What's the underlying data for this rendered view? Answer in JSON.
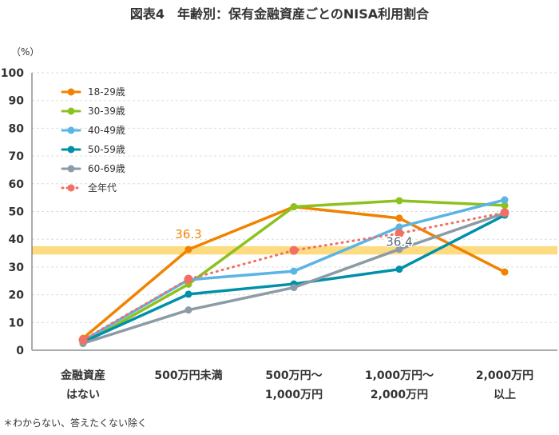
{
  "title": "図表4　年齢別：保有金融資産ごとのNISA利用割合",
  "footnote": "＊わからない、答えたくない除く",
  "chart_data": {
    "type": "line",
    "ylabel": "（%）",
    "ylim": [
      0,
      100
    ],
    "yticks": [
      0,
      10,
      20,
      30,
      40,
      50,
      60,
      70,
      80,
      90,
      100
    ],
    "grid": true,
    "legend": "top-left",
    "categories": [
      [
        "金融資産",
        "はない"
      ],
      [
        "500万円未満"
      ],
      [
        "500万円～",
        "1,000万円"
      ],
      [
        "1,000万円～",
        "2,000万円"
      ],
      [
        "2,000万円",
        "以上"
      ]
    ],
    "highlight_band": [
      34.5,
      37.5
    ],
    "highlight_color": "#fbd56b",
    "series": [
      {
        "name": "18-29歳",
        "color": "#f08300",
        "values": [
          4.3,
          36.3,
          51.7,
          47.6,
          28.2
        ],
        "dotted": false
      },
      {
        "name": "30-39歳",
        "color": "#8cc21f",
        "values": [
          2.4,
          23.8,
          51.7,
          53.9,
          52.2
        ],
        "dotted": false
      },
      {
        "name": "40-49歳",
        "color": "#5ab4e5",
        "values": [
          3.4,
          25.4,
          28.5,
          44.4,
          54.2
        ],
        "dotted": false
      },
      {
        "name": "50-59歳",
        "color": "#0090a8",
        "values": [
          3.0,
          20.2,
          23.9,
          29.2,
          48.7
        ],
        "dotted": false
      },
      {
        "name": "60-69歳",
        "color": "#8c9ba5",
        "values": [
          2.5,
          14.5,
          22.6,
          36.4,
          49.4
        ],
        "dotted": false
      },
      {
        "name": "全年代",
        "color": "#f26f63",
        "values": [
          3.7,
          25.6,
          36.0,
          42.1,
          49.6
        ],
        "dotted": true
      }
    ],
    "annotations": [
      {
        "text": "36.3",
        "series": 0,
        "index": 1,
        "color": "#f08300"
      },
      {
        "text": "36.4",
        "series": 4,
        "index": 3,
        "color": "#5a6b7a"
      }
    ]
  }
}
